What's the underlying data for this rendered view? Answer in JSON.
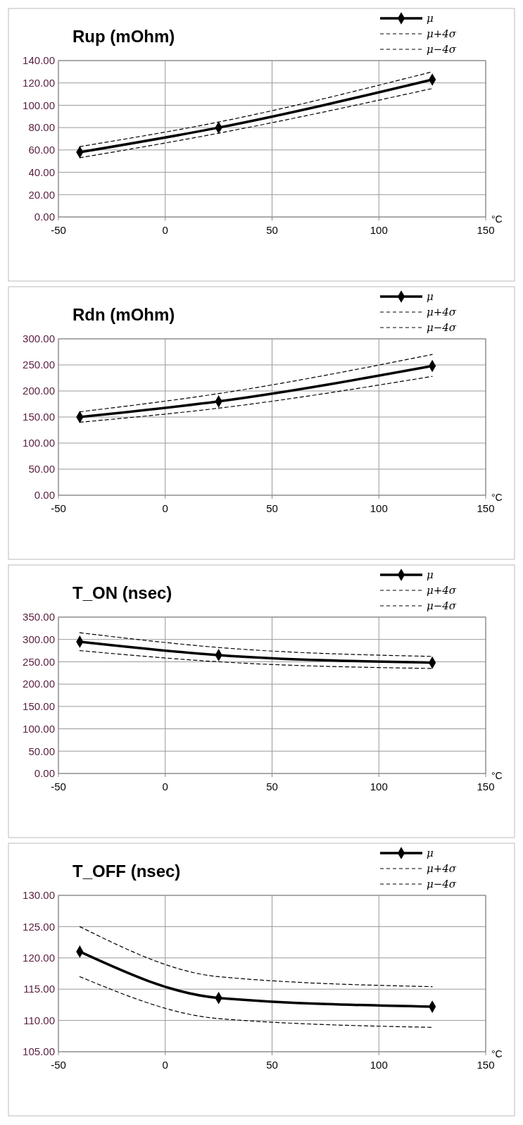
{
  "chart_data": [
    {
      "type": "line",
      "title": "Rup (mOhm)",
      "xlabel": "°C",
      "xlim": [
        -50,
        150
      ],
      "xticks": [
        -50,
        0,
        50,
        100,
        150
      ],
      "ylim": [
        0,
        140
      ],
      "yticks": [
        {
          "value": 0,
          "label": "0.00"
        },
        {
          "value": 20,
          "label": "20.00"
        },
        {
          "value": 40,
          "label": "40.00"
        },
        {
          "value": 60,
          "label": "60.00"
        },
        {
          "value": 80,
          "label": "80.00"
        },
        {
          "value": 100,
          "label": "100.00"
        },
        {
          "value": 120,
          "label": "120.00"
        },
        {
          "value": 140,
          "label": "140.00"
        }
      ],
      "grid": true,
      "legend": "top right",
      "x": [
        -40,
        25,
        125
      ],
      "series": [
        {
          "name": "μ",
          "color": "#000000",
          "values": [
            58,
            80,
            123
          ],
          "marker": "diamond",
          "line_style": "solid"
        },
        {
          "name": "μ+4σ",
          "color": "#000000",
          "values": [
            63,
            85,
            130
          ],
          "marker": "none",
          "line_style": "dashed"
        },
        {
          "name": "μ−4σ",
          "color": "#000000",
          "values": [
            53,
            75,
            115
          ],
          "marker": "none",
          "line_style": "dashed"
        }
      ]
    },
    {
      "type": "line",
      "title": "Rdn (mOhm)",
      "xlabel": "°C",
      "xlim": [
        -50,
        150
      ],
      "xticks": [
        -50,
        0,
        50,
        100,
        150
      ],
      "ylim": [
        0,
        300
      ],
      "yticks": [
        {
          "value": 0,
          "label": "0.00"
        },
        {
          "value": 50,
          "label": "50.00"
        },
        {
          "value": 100,
          "label": "100.00"
        },
        {
          "value": 150,
          "label": "150.00"
        },
        {
          "value": 200,
          "label": "200.00"
        },
        {
          "value": 250,
          "label": "250.00"
        },
        {
          "value": 300,
          "label": "300.00"
        }
      ],
      "grid": true,
      "legend": "top right",
      "x": [
        -40,
        25,
        125
      ],
      "series": [
        {
          "name": "μ",
          "color": "#000000",
          "values": [
            150,
            180,
            248
          ],
          "marker": "diamond",
          "line_style": "solid"
        },
        {
          "name": "μ+4σ",
          "color": "#000000",
          "values": [
            160,
            195,
            270
          ],
          "marker": "none",
          "line_style": "dashed"
        },
        {
          "name": "μ−4σ",
          "color": "#000000",
          "values": [
            140,
            167,
            228
          ],
          "marker": "none",
          "line_style": "dashed"
        }
      ]
    },
    {
      "type": "line",
      "title": "T_ON (nsec)",
      "xlabel": "°C",
      "xlim": [
        -50,
        150
      ],
      "xticks": [
        -50,
        0,
        50,
        100,
        150
      ],
      "ylim": [
        0,
        350
      ],
      "yticks": [
        {
          "value": 0,
          "label": "0.00"
        },
        {
          "value": 50,
          "label": "50.00"
        },
        {
          "value": 100,
          "label": "100.00"
        },
        {
          "value": 150,
          "label": "150.00"
        },
        {
          "value": 200,
          "label": "200.00"
        },
        {
          "value": 250,
          "label": "250.00"
        },
        {
          "value": 300,
          "label": "300.00"
        },
        {
          "value": 350,
          "label": "350.00"
        }
      ],
      "grid": true,
      "legend": "top right",
      "x": [
        -40,
        25,
        125
      ],
      "series": [
        {
          "name": "μ",
          "color": "#000000",
          "values": [
            295,
            265,
            248
          ],
          "marker": "diamond",
          "line_style": "solid"
        },
        {
          "name": "μ+4σ",
          "color": "#000000",
          "values": [
            315,
            282,
            262
          ],
          "marker": "none",
          "line_style": "dashed"
        },
        {
          "name": "μ−4σ",
          "color": "#000000",
          "values": [
            275,
            250,
            235
          ],
          "marker": "none",
          "line_style": "dashed"
        }
      ]
    },
    {
      "type": "line",
      "title": "T_OFF (nsec)",
      "xlabel": "°C",
      "xlim": [
        -50,
        150
      ],
      "xticks": [
        -50,
        0,
        50,
        100,
        150
      ],
      "ylim": [
        105,
        130
      ],
      "yticks": [
        {
          "value": 105,
          "label": "105.00"
        },
        {
          "value": 110,
          "label": "110.00"
        },
        {
          "value": 115,
          "label": "115.00"
        },
        {
          "value": 120,
          "label": "120.00"
        },
        {
          "value": 125,
          "label": "125.00"
        },
        {
          "value": 130,
          "label": "130.00"
        }
      ],
      "grid": true,
      "legend": "top right",
      "x": [
        -40,
        25,
        125
      ],
      "series": [
        {
          "name": "μ",
          "color": "#000000",
          "values": [
            121,
            113.6,
            112.2
          ],
          "marker": "diamond",
          "line_style": "solid"
        },
        {
          "name": "μ+4σ",
          "color": "#000000",
          "values": [
            125,
            117,
            115.4
          ],
          "marker": "none",
          "line_style": "dashed"
        },
        {
          "name": "μ−4σ",
          "color": "#000000",
          "values": [
            117,
            110.3,
            108.9
          ],
          "marker": "none",
          "line_style": "dashed"
        }
      ]
    }
  ]
}
